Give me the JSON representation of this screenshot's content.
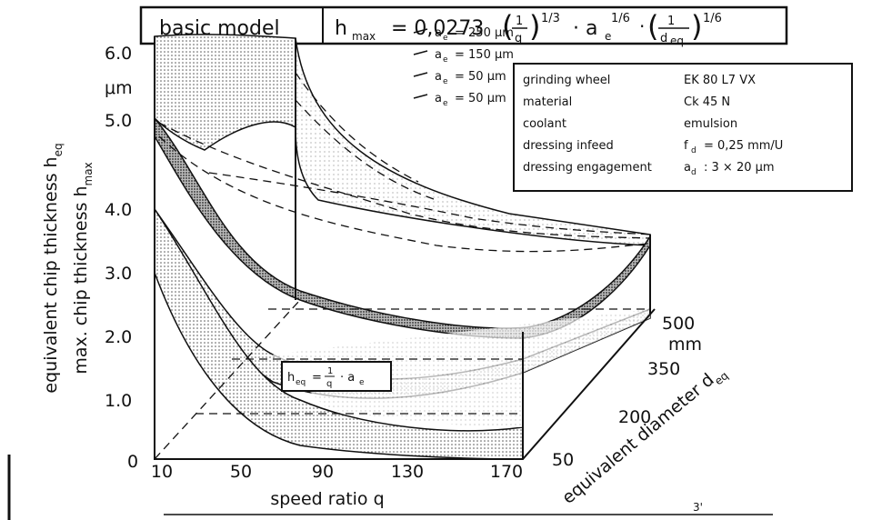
{
  "title_box": {
    "label": "basic model",
    "formula": {
      "lhs": "h",
      "lhs_sub": "max",
      "eq": "= 0,0273",
      "f1_num": "1",
      "f1_den": "q",
      "exp1": "1/3",
      "mid": "· a",
      "mid_sub": "e",
      "exp2": "1/6",
      "dot": "·",
      "f2_num": "1",
      "f2_den": "d",
      "f2_den_sub": "eq",
      "exp3": "1/6"
    }
  },
  "y_axis": {
    "label1": {
      "text": "equivalent chip thickness h",
      "sub": "eq"
    },
    "label2": {
      "text": "max. chip thickness h",
      "sub": "max"
    },
    "unit": "μm",
    "ticks": [
      "6.0",
      "5.0",
      "4.0",
      "3.0",
      "2.0",
      "1.0",
      "0"
    ]
  },
  "x_axis": {
    "label": "speed ratio q",
    "ticks": [
      "10",
      "50",
      "90",
      "130",
      "170"
    ]
  },
  "depth_axis": {
    "label": "equivalent diameter d",
    "sub": "eq",
    "unit": "mm",
    "ticks": [
      "500",
      "350",
      "200",
      "50"
    ]
  },
  "legend": [
    {
      "sym": "a",
      "sub": "e",
      "text": "= 250 μm"
    },
    {
      "sym": "a",
      "sub": "e",
      "text": "= 150 μm"
    },
    {
      "sym": "a",
      "sub": "e",
      "text": "=   50 μm"
    },
    {
      "sym": "a",
      "sub": "e",
      "text": "=   50 μm"
    }
  ],
  "conditions": [
    {
      "label": "grinding wheel",
      "value": "EK 80 L7 VX"
    },
    {
      "label": "material",
      "value": "Ck 45 N"
    },
    {
      "label": "coolant",
      "value": "emulsion"
    },
    {
      "label": "dressing infeed",
      "sym": "f",
      "sub": "d",
      "value": "= 0,25 mm/U"
    },
    {
      "label": "dressing engagement",
      "sym": "a",
      "sub": "d",
      "value": ": 3 × 20 μm"
    }
  ],
  "inset": {
    "lhs": "h",
    "lhs_sub": "eq",
    "eq": "=",
    "num": "1",
    "den": "q",
    "rest": "· a",
    "rest_sub": "e"
  },
  "footer": "3'"
}
